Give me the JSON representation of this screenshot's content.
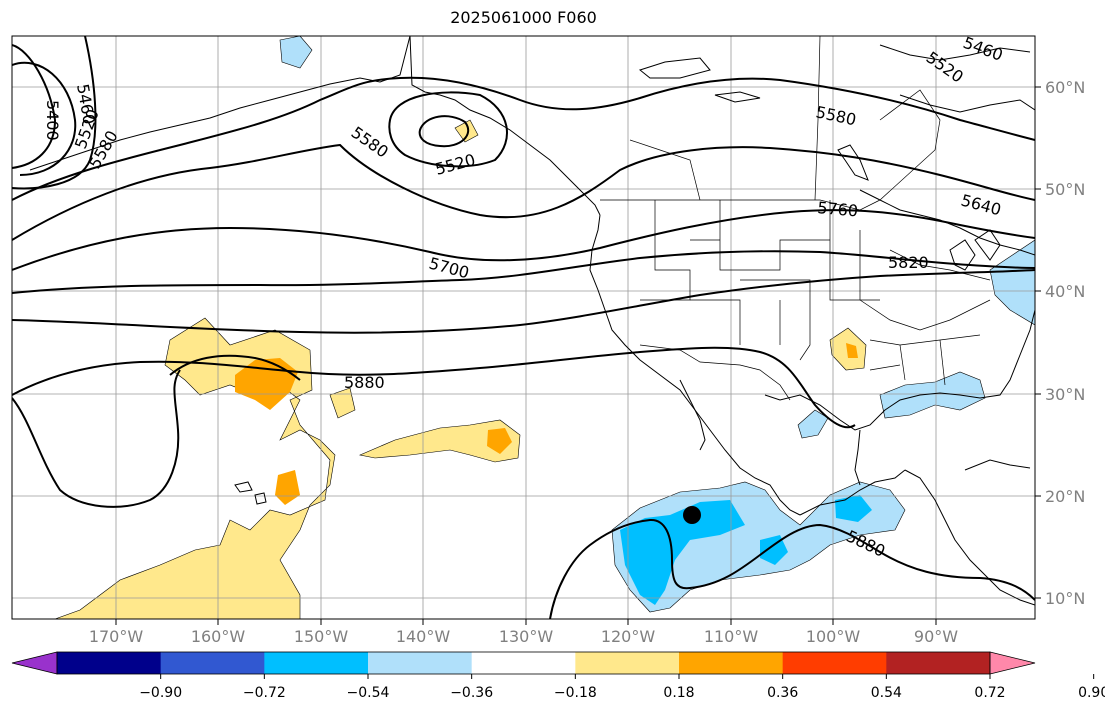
{
  "title": "2025061000 F060",
  "lat_labels": [
    "60°N",
    "50°N",
    "40°N",
    "30°N",
    "20°N",
    "10°N"
  ],
  "lon_labels": [
    "170°W",
    "160°W",
    "150°W",
    "140°W",
    "130°W",
    "120°W",
    "110°W",
    "100°W",
    "90°W"
  ],
  "contour_labels": [
    "5400",
    "5460",
    "5520",
    "5580",
    "5580",
    "5520",
    "5460",
    "5520",
    "5580",
    "5640",
    "5700",
    "5760",
    "5820",
    "5880",
    "5880"
  ],
  "colorbar": {
    "colors": [
      "#9932cc",
      "#00008b",
      "#3158d1",
      "#00bfff",
      "#b0e0fa",
      "#ffffff",
      "#ffe88c",
      "#ffa500",
      "#ff3d00",
      "#b22222",
      "#ff88aa"
    ],
    "tick_labels": [
      "−0.90",
      "−0.72",
      "−0.54",
      "−0.36",
      "−0.18",
      "0.18",
      "0.36",
      "0.54",
      "0.72",
      "0.90"
    ]
  },
  "storm_marker": "black-dot"
}
